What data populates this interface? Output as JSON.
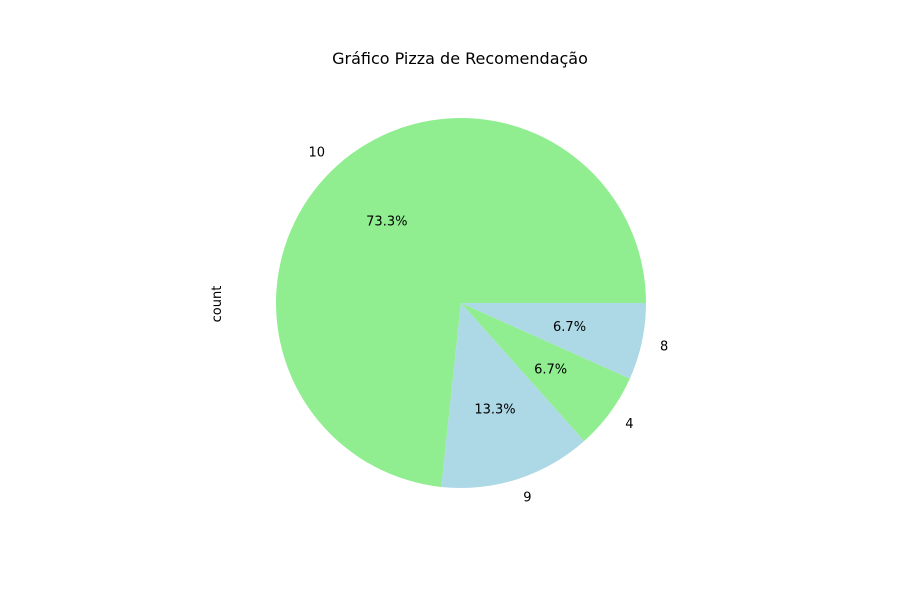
{
  "chart_data": {
    "type": "pie",
    "title": "Gráfico Pizza de Recomendação",
    "ylabel": "count",
    "start_angle_deg": 0,
    "direction": "counterclockwise",
    "slices": [
      {
        "label": "10",
        "value": 73.3,
        "pct_label": "73.3%",
        "color": "#90ee90"
      },
      {
        "label": "9",
        "value": 13.3,
        "pct_label": "13.3%",
        "color": "#add8e6"
      },
      {
        "label": "4",
        "value": 6.7,
        "pct_label": "6.7%",
        "color": "#90ee90"
      },
      {
        "label": "8",
        "value": 6.7,
        "pct_label": "6.7%",
        "color": "#add8e6"
      }
    ]
  }
}
